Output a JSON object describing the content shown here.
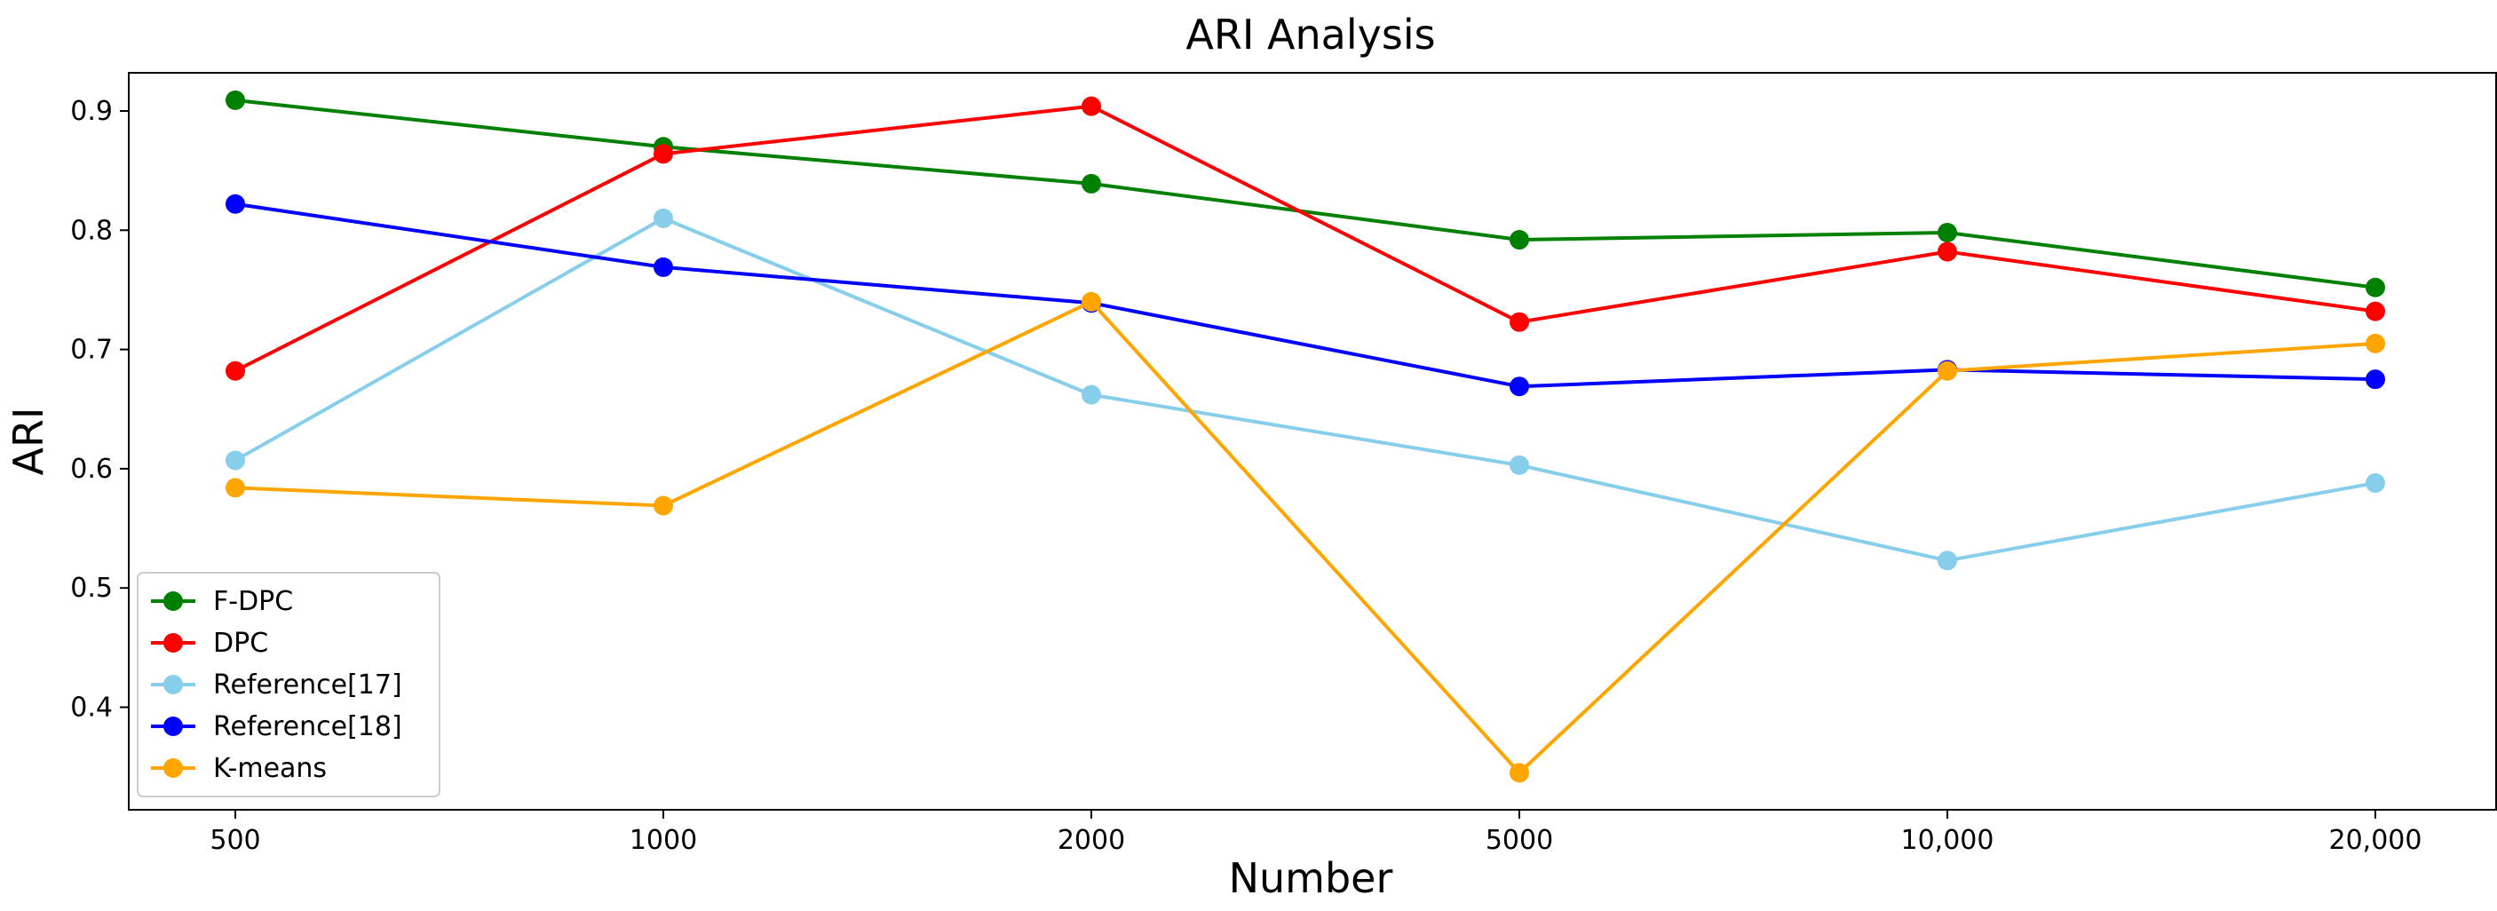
{
  "chart_data": {
    "type": "line",
    "title": "ARI Analysis",
    "xlabel": "Number",
    "ylabel": "ARI",
    "categories": [
      "500",
      "1000",
      "2000",
      "5000",
      "10,000",
      "20,000"
    ],
    "yticks": [
      "0.4",
      "0.5",
      "0.6",
      "0.7",
      "0.8",
      "0.9"
    ],
    "ylim": [
      0.314,
      0.932
    ],
    "grid": false,
    "legend_position": "lower-left",
    "series": [
      {
        "name": "F-DPC",
        "color": "#008000",
        "values": [
          0.909,
          0.87,
          0.839,
          0.792,
          0.798,
          0.752
        ]
      },
      {
        "name": "DPC",
        "color": "#ff0000",
        "values": [
          0.682,
          0.864,
          0.904,
          0.723,
          0.782,
          0.732
        ]
      },
      {
        "name": "Reference[17]",
        "color": "#87ceeb",
        "values": [
          0.607,
          0.81,
          0.662,
          0.603,
          0.523,
          0.588
        ]
      },
      {
        "name": "Reference[18]",
        "color": "#0000ff",
        "values": [
          0.822,
          0.769,
          0.739,
          0.669,
          0.683,
          0.675
        ]
      },
      {
        "name": "K-means",
        "color": "#ffa500",
        "values": [
          0.584,
          0.569,
          0.74,
          0.345,
          0.682,
          0.705
        ]
      }
    ]
  }
}
